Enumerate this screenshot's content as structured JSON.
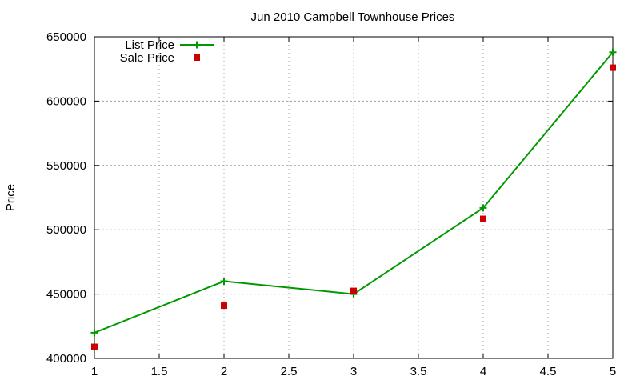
{
  "chart_data": {
    "type": "line",
    "title": "Jun 2010 Campbell Townhouse Prices",
    "xlabel": "",
    "ylabel": "Price",
    "xlim": [
      1,
      5
    ],
    "ylim": [
      400000,
      650000
    ],
    "x_ticks": [
      1,
      1.5,
      2,
      2.5,
      3,
      3.5,
      4,
      4.5,
      5
    ],
    "y_ticks": [
      400000,
      450000,
      500000,
      550000,
      600000,
      650000
    ],
    "grid": true,
    "legend_position": "top-left",
    "series": [
      {
        "name": "List Price",
        "style": "line-plus",
        "color": "#009900",
        "x": [
          1,
          2,
          3,
          4,
          5
        ],
        "y": [
          420000,
          460000,
          450000,
          517000,
          638000
        ]
      },
      {
        "name": "Sale Price",
        "style": "square-points",
        "color": "#cc0000",
        "x": [
          1,
          2,
          3,
          4,
          5
        ],
        "y": [
          409000,
          441000,
          452500,
          508500,
          626000
        ]
      }
    ]
  }
}
